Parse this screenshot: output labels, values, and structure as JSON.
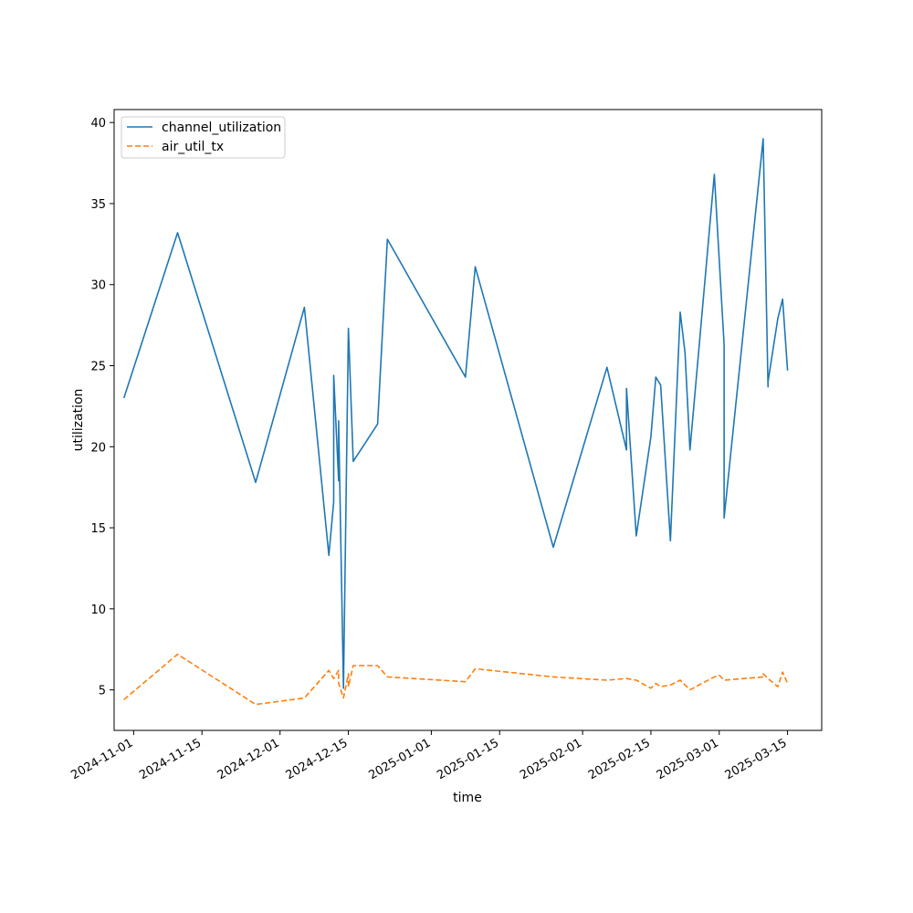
{
  "chart_data": {
    "type": "line",
    "title": "",
    "xlabel": "time",
    "ylabel": "utilization",
    "x_axis_kind": "date",
    "xlim": [
      "2024-10-28",
      "2025-03-22"
    ],
    "ylim": [
      2.5,
      40.8
    ],
    "x_ticks": [
      "2024-11-01",
      "2024-11-15",
      "2024-12-01",
      "2024-12-15",
      "2025-01-01",
      "2025-01-15",
      "2025-02-01",
      "2025-02-15",
      "2025-03-01",
      "2025-03-15"
    ],
    "y_ticks": [
      5,
      10,
      15,
      20,
      25,
      30,
      35,
      40
    ],
    "grid": false,
    "legend_position": "upper-left",
    "series": [
      {
        "name": "channel_utilization",
        "color": "#1f77b4",
        "style": "solid",
        "points": [
          [
            "2024-10-30",
            23.0
          ],
          [
            "2024-11-10",
            33.2
          ],
          [
            "2024-11-26",
            17.8
          ],
          [
            "2024-12-06",
            28.6
          ],
          [
            "2024-12-11",
            13.3
          ],
          [
            "2024-12-12",
            16.6
          ],
          [
            "2024-12-12",
            24.4
          ],
          [
            "2024-12-13",
            17.9
          ],
          [
            "2024-12-13",
            21.6
          ],
          [
            "2024-12-14",
            5.1
          ],
          [
            "2024-12-15",
            27.3
          ],
          [
            "2024-12-16",
            19.1
          ],
          [
            "2024-12-21",
            21.4
          ],
          [
            "2024-12-23",
            32.8
          ],
          [
            "2025-01-08",
            24.3
          ],
          [
            "2025-01-10",
            31.1
          ],
          [
            "2025-01-26",
            13.8
          ],
          [
            "2025-02-06",
            24.9
          ],
          [
            "2025-02-10",
            19.8
          ],
          [
            "2025-02-10",
            23.6
          ],
          [
            "2025-02-12",
            14.5
          ],
          [
            "2025-02-15",
            20.6
          ],
          [
            "2025-02-16",
            24.3
          ],
          [
            "2025-02-17",
            23.8
          ],
          [
            "2025-02-19",
            14.2
          ],
          [
            "2025-02-21",
            28.3
          ],
          [
            "2025-02-22",
            25.8
          ],
          [
            "2025-02-23",
            19.8
          ],
          [
            "2025-02-28",
            36.8
          ],
          [
            "2025-03-02",
            26.3
          ],
          [
            "2025-03-02",
            15.6
          ],
          [
            "2025-03-10",
            39.0
          ],
          [
            "2025-03-11",
            23.7
          ],
          [
            "2025-03-11",
            24.0
          ],
          [
            "2025-03-13",
            27.9
          ],
          [
            "2025-03-14",
            29.1
          ],
          [
            "2025-03-15",
            24.7
          ]
        ]
      },
      {
        "name": "air_util_tx",
        "color": "#ff7f0e",
        "style": "dashed",
        "points": [
          [
            "2024-10-30",
            4.4
          ],
          [
            "2024-11-10",
            7.2
          ],
          [
            "2024-11-26",
            4.1
          ],
          [
            "2024-12-06",
            4.5
          ],
          [
            "2024-12-11",
            6.2
          ],
          [
            "2024-12-12",
            5.7
          ],
          [
            "2024-12-13",
            6.2
          ],
          [
            "2024-12-13",
            5.4
          ],
          [
            "2024-12-14",
            4.5
          ],
          [
            "2024-12-15",
            6.0
          ],
          [
            "2024-12-15",
            5.2
          ],
          [
            "2024-12-16",
            6.5
          ],
          [
            "2024-12-21",
            6.5
          ],
          [
            "2024-12-23",
            5.8
          ],
          [
            "2025-01-08",
            5.5
          ],
          [
            "2025-01-10",
            6.3
          ],
          [
            "2025-01-26",
            5.8
          ],
          [
            "2025-02-06",
            5.6
          ],
          [
            "2025-02-10",
            5.7
          ],
          [
            "2025-02-12",
            5.6
          ],
          [
            "2025-02-15",
            5.1
          ],
          [
            "2025-02-16",
            5.4
          ],
          [
            "2025-02-17",
            5.2
          ],
          [
            "2025-02-19",
            5.3
          ],
          [
            "2025-02-21",
            5.6
          ],
          [
            "2025-02-23",
            5.0
          ],
          [
            "2025-02-28",
            5.8
          ],
          [
            "2025-03-01",
            5.9
          ],
          [
            "2025-03-02",
            5.6
          ],
          [
            "2025-03-10",
            5.8
          ],
          [
            "2025-03-10",
            6.0
          ],
          [
            "2025-03-11",
            5.7
          ],
          [
            "2025-03-13",
            5.2
          ],
          [
            "2025-03-14",
            6.1
          ],
          [
            "2025-03-15",
            5.4
          ]
        ]
      }
    ]
  }
}
